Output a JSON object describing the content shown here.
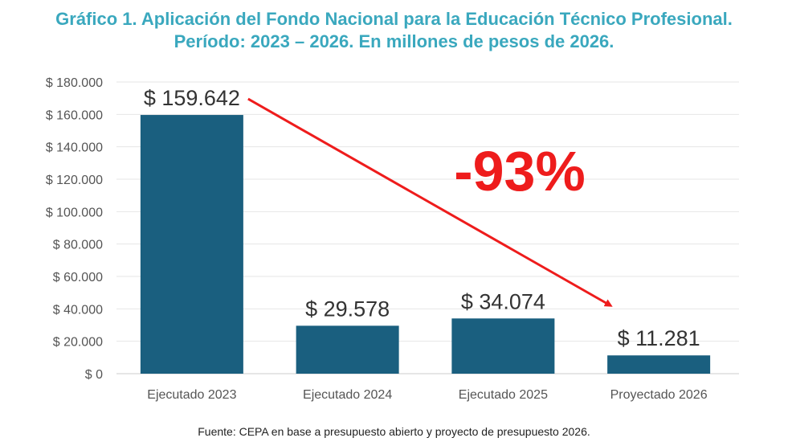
{
  "title_line1": "Gráfico 1. Aplicación del Fondo Nacional para la Educación Técnico Profesional.",
  "title_line2": "Período: 2023 – 2026. En millones de pesos de 2026.",
  "source": "Fuente: CEPA en base a presupuesto abierto y proyecto de presupuesto 2026.",
  "colors": {
    "bar": "#1a5f7f",
    "title": "#3aa8be",
    "annotation": "#ee1c1c",
    "grid": "#e6e6e6"
  },
  "chart_data": {
    "type": "bar",
    "categories": [
      "Ejecutado 2023",
      "Ejecutado 2024",
      "Ejecutado 2025",
      "Proyectado 2026"
    ],
    "values": [
      159642,
      29578,
      34074,
      11281
    ],
    "data_labels": [
      "$ 159.642",
      "$ 29.578",
      "$ 34.074",
      "$ 11.281"
    ],
    "y_ticks": [
      0,
      20000,
      40000,
      60000,
      80000,
      100000,
      120000,
      140000,
      160000,
      180000
    ],
    "y_tick_labels": [
      "$ 0",
      "$ 20.000",
      "$ 40.000",
      "$ 60.000",
      "$ 80.000",
      "$ 100.000",
      "$ 120.000",
      "$ 140.000",
      "$ 160.000",
      "$ 180.000"
    ],
    "ylim": [
      0,
      180000
    ],
    "grid": true,
    "annotation": {
      "text": "-93%",
      "arrow_from": "Ejecutado 2023",
      "arrow_to": "Proyectado 2026"
    }
  }
}
